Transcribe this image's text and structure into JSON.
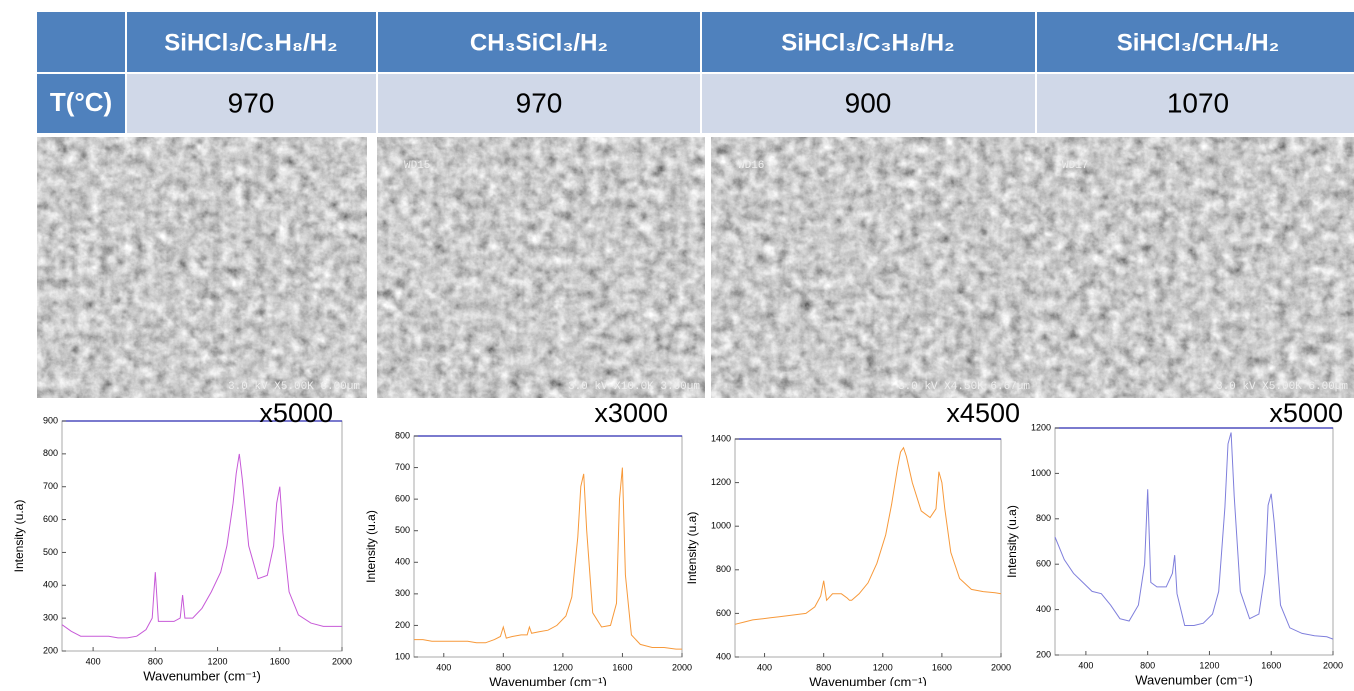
{
  "table": {
    "columns": [
      "SiHCl₃/C₃H₈/H₂",
      "CH₃SiCl₃/H₂",
      "SiHCl₃/C₃H₈/H₂",
      "SiHCl₃/CH₄/H₂"
    ],
    "row_label": "T(°C)",
    "values": [
      970,
      970,
      900,
      1070
    ]
  },
  "images": [
    {
      "overlay": [
        "3.0 kV X5.00K 6.00µm"
      ]
    },
    {
      "overlay": [
        "WD15",
        "3.0 kV X10.0K 3.00µm"
      ]
    },
    {
      "overlay": [
        "WD16",
        "3.0 kV X4.50K 6.67µm"
      ]
    },
    {
      "overlay": [
        "WD17",
        "3.0 kV X5.00K 6.00µm"
      ]
    }
  ],
  "chart_data": [
    {
      "type": "line",
      "annotation": "x5000",
      "xlabel": "Wavenumber (cm⁻¹)",
      "ylabel": "Intensity (u.a)",
      "color": "#c75ad8",
      "x": [
        200,
        260,
        320,
        380,
        440,
        500,
        560,
        620,
        680,
        740,
        780,
        800,
        820,
        860,
        920,
        960,
        975,
        990,
        1040,
        1100,
        1160,
        1220,
        1260,
        1300,
        1320,
        1340,
        1360,
        1400,
        1460,
        1520,
        1560,
        1580,
        1600,
        1620,
        1660,
        1720,
        1800,
        1880,
        1960,
        2000
      ],
      "values": [
        280,
        260,
        245,
        245,
        245,
        245,
        240,
        240,
        245,
        265,
        300,
        440,
        290,
        290,
        290,
        300,
        370,
        300,
        300,
        330,
        380,
        440,
        520,
        650,
        740,
        800,
        720,
        520,
        420,
        430,
        520,
        650,
        700,
        560,
        380,
        310,
        285,
        275,
        275,
        275
      ],
      "xlim": [
        200,
        2000
      ],
      "xticks": [
        400,
        800,
        1200,
        1600,
        2000
      ],
      "ylim": [
        200,
        900
      ],
      "yticks": [
        200,
        300,
        400,
        500,
        600,
        700,
        800,
        900
      ]
    },
    {
      "type": "line",
      "annotation": "x3000",
      "xlabel": "Wavenumber (cm⁻¹)",
      "ylabel": "Intensity (u.a)",
      "color": "#f7993a",
      "x": [
        200,
        260,
        320,
        380,
        440,
        500,
        560,
        620,
        680,
        740,
        780,
        800,
        820,
        860,
        920,
        960,
        975,
        990,
        1040,
        1100,
        1160,
        1220,
        1260,
        1300,
        1320,
        1340,
        1360,
        1400,
        1460,
        1520,
        1560,
        1580,
        1600,
        1620,
        1660,
        1720,
        1800,
        1880,
        1960,
        2000
      ],
      "values": [
        155,
        155,
        150,
        150,
        150,
        150,
        150,
        145,
        145,
        155,
        165,
        195,
        160,
        165,
        170,
        170,
        195,
        175,
        180,
        185,
        200,
        230,
        290,
        480,
        640,
        680,
        500,
        240,
        195,
        200,
        270,
        600,
        700,
        360,
        170,
        140,
        130,
        130,
        125,
        125
      ],
      "xlim": [
        200,
        2000
      ],
      "xticks": [
        400,
        800,
        1200,
        1600,
        2000
      ],
      "ylim": [
        100,
        800
      ],
      "yticks": [
        100,
        200,
        300,
        400,
        500,
        600,
        700,
        800
      ]
    },
    {
      "type": "line",
      "annotation": "x4500",
      "xlabel": "Wavenumber (cm⁻¹)",
      "ylabel": "Intensity (u.a)",
      "color": "#f7993a",
      "x": [
        200,
        260,
        320,
        380,
        440,
        500,
        560,
        620,
        680,
        740,
        780,
        800,
        820,
        860,
        920,
        960,
        975,
        990,
        1040,
        1100,
        1160,
        1220,
        1260,
        1300,
        1320,
        1340,
        1360,
        1400,
        1460,
        1520,
        1560,
        1580,
        1600,
        1620,
        1660,
        1720,
        1800,
        1880,
        1960,
        2000
      ],
      "values": [
        550,
        560,
        570,
        575,
        580,
        585,
        590,
        595,
        600,
        630,
        680,
        750,
        660,
        690,
        690,
        670,
        660,
        660,
        690,
        740,
        830,
        960,
        1100,
        1270,
        1340,
        1360,
        1320,
        1200,
        1070,
        1040,
        1080,
        1250,
        1200,
        1080,
        880,
        760,
        710,
        700,
        695,
        690
      ],
      "xlim": [
        200,
        2000
      ],
      "xticks": [
        400,
        800,
        1200,
        1600,
        2000
      ],
      "ylim": [
        400,
        1400
      ],
      "yticks": [
        400,
        600,
        800,
        1000,
        1200,
        1400
      ]
    },
    {
      "type": "line",
      "annotation": "x5000",
      "xlabel": "Wavenumber (cm⁻¹)",
      "ylabel": "Intensity (u.a)",
      "color": "#7f7fdc",
      "x": [
        200,
        260,
        320,
        380,
        440,
        500,
        560,
        620,
        680,
        740,
        780,
        800,
        820,
        860,
        920,
        960,
        975,
        990,
        1040,
        1100,
        1160,
        1220,
        1260,
        1300,
        1320,
        1340,
        1360,
        1400,
        1460,
        1520,
        1560,
        1580,
        1600,
        1620,
        1660,
        1720,
        1800,
        1880,
        1960,
        2000
      ],
      "values": [
        720,
        620,
        560,
        520,
        480,
        470,
        420,
        360,
        350,
        420,
        600,
        930,
        520,
        500,
        500,
        560,
        640,
        470,
        330,
        330,
        340,
        380,
        480,
        850,
        1130,
        1180,
        900,
        480,
        360,
        380,
        560,
        860,
        910,
        780,
        420,
        320,
        295,
        285,
        280,
        270
      ],
      "xlim": [
        200,
        2000
      ],
      "xticks": [
        400,
        800,
        1200,
        1600,
        2000
      ],
      "ylim": [
        200,
        1200
      ],
      "yticks": [
        200,
        400,
        600,
        800,
        1000,
        1200
      ]
    }
  ]
}
